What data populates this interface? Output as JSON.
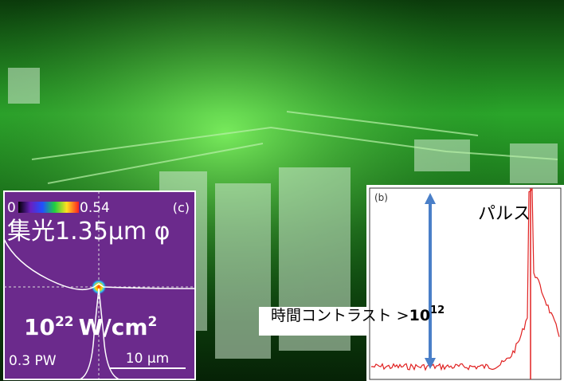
{
  "photo": {
    "inset_c": {
      "colorbar_min": "0",
      "colorbar_max": "0.54",
      "panel": "(c)",
      "focus": "集光1.35μm φ",
      "intensity": {
        "base": "10",
        "exponent": "22",
        "unit": "W/cm",
        "unit_exponent": "2"
      },
      "power": "0.3 PW",
      "scale": "10 μm"
    },
    "inset_b": {
      "panel": "(b)",
      "pulse": "パルス",
      "contrast": {
        "label": "時間コントラスト >",
        "base": "10",
        "exponent": "12"
      }
    }
  }
}
